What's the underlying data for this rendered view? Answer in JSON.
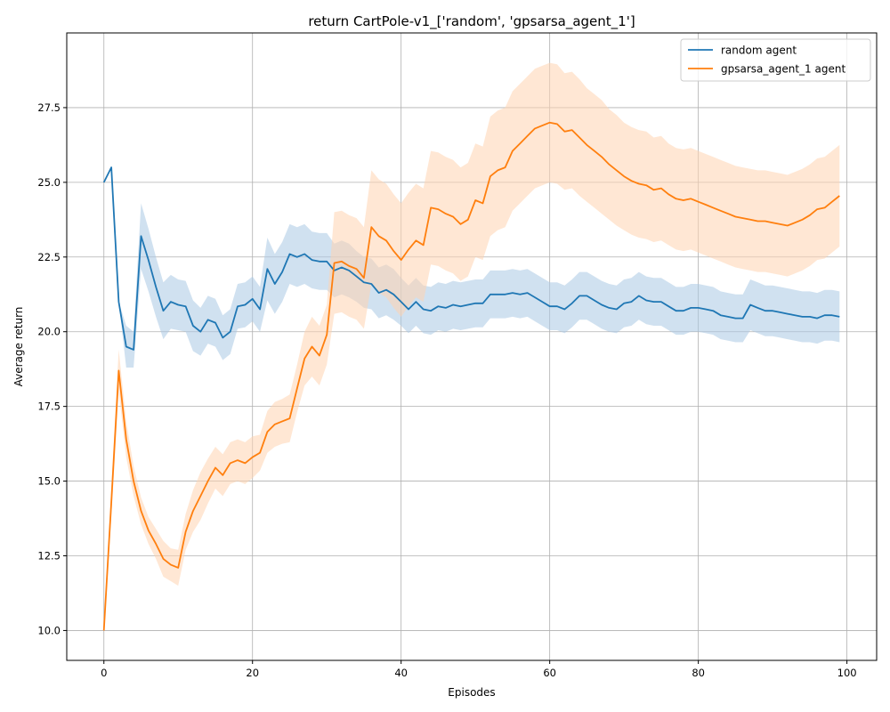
{
  "chart_data": {
    "type": "line",
    "title": "return CartPole-v1_['random', 'gpsarsa_agent_1']",
    "xlabel": "Episodes",
    "ylabel": "Average return",
    "xlim": [
      -5,
      104
    ],
    "ylim": [
      9.0,
      30.0
    ],
    "xticks": [
      0,
      20,
      40,
      60,
      80,
      100
    ],
    "xtick_labels": [
      "0",
      "20",
      "40",
      "60",
      "80",
      "100"
    ],
    "yticks": [
      10.0,
      12.5,
      15.0,
      17.5,
      20.0,
      22.5,
      25.0,
      27.5
    ],
    "ytick_labels": [
      "10.0",
      "12.5",
      "15.0",
      "17.5",
      "20.0",
      "22.5",
      "25.0",
      "27.5"
    ],
    "grid": true,
    "legend_position": "top-right",
    "series": [
      {
        "name": "random agent",
        "color": "#1f77b4",
        "band_color": "#aac8e4",
        "x_start": 0,
        "values": [
          25.0,
          25.5,
          21.0,
          19.5,
          19.4,
          23.2,
          22.4,
          21.5,
          20.7,
          21.0,
          20.9,
          20.85,
          20.2,
          20.0,
          20.4,
          20.3,
          19.8,
          20.0,
          20.85,
          20.9,
          21.1,
          20.75,
          22.1,
          21.6,
          22.0,
          22.6,
          22.5,
          22.6,
          22.4,
          22.35,
          22.35,
          22.05,
          22.15,
          22.05,
          21.85,
          21.65,
          21.6,
          21.3,
          21.4,
          21.25,
          21.0,
          20.75,
          21.0,
          20.75,
          20.7,
          20.85,
          20.8,
          20.9,
          20.85,
          20.9,
          20.95,
          20.95,
          21.25,
          21.25,
          21.25,
          21.3,
          21.25,
          21.3,
          21.15,
          21.0,
          20.85,
          20.85,
          20.75,
          20.95,
          21.2,
          21.2,
          21.05,
          20.9,
          20.8,
          20.75,
          20.95,
          21.0,
          21.2,
          21.05,
          21.0,
          21.0,
          20.85,
          20.7,
          20.7,
          20.8,
          20.8,
          20.75,
          20.7,
          20.55,
          20.5,
          20.45,
          20.45,
          20.9,
          20.8,
          20.7,
          20.7,
          20.65,
          20.6,
          20.55,
          20.5,
          20.5,
          20.45,
          20.55,
          20.55,
          20.5
        ],
        "band_halfwidth": [
          0,
          0,
          0,
          0.7,
          0.6,
          1.1,
          1.05,
          1.0,
          0.95,
          0.9,
          0.85,
          0.85,
          0.85,
          0.8,
          0.8,
          0.8,
          0.75,
          0.75,
          0.75,
          0.75,
          0.75,
          0.75,
          1.05,
          1.0,
          1.0,
          1.0,
          1.0,
          1.0,
          0.95,
          0.95,
          0.95,
          0.9,
          0.9,
          0.9,
          0.85,
          0.85,
          0.85,
          0.85,
          0.85,
          0.85,
          0.8,
          0.8,
          0.8,
          0.8,
          0.8,
          0.8,
          0.8,
          0.8,
          0.8,
          0.8,
          0.8,
          0.8,
          0.8,
          0.8,
          0.8,
          0.8,
          0.8,
          0.8,
          0.8,
          0.8,
          0.8,
          0.8,
          0.8,
          0.8,
          0.8,
          0.8,
          0.8,
          0.8,
          0.8,
          0.8,
          0.8,
          0.8,
          0.8,
          0.8,
          0.8,
          0.8,
          0.8,
          0.8,
          0.8,
          0.8,
          0.8,
          0.8,
          0.8,
          0.8,
          0.8,
          0.8,
          0.8,
          0.85,
          0.85,
          0.85,
          0.85,
          0.85,
          0.85,
          0.85,
          0.85,
          0.85,
          0.85,
          0.85,
          0.85,
          0.85
        ]
      },
      {
        "name": "gpsarsa_agent_1 agent",
        "color": "#ff7f0e",
        "band_color": "#ffd4b0",
        "x_start": 0,
        "values": [
          10.0,
          14.3,
          18.7,
          16.4,
          15.0,
          14.0,
          13.35,
          12.9,
          12.4,
          12.2,
          12.1,
          13.3,
          14.0,
          14.5,
          15.0,
          15.45,
          15.2,
          15.6,
          15.7,
          15.6,
          15.8,
          15.95,
          16.65,
          16.9,
          17.0,
          17.1,
          18.1,
          19.1,
          19.5,
          19.2,
          19.9,
          22.3,
          22.35,
          22.2,
          22.1,
          21.8,
          23.5,
          23.2,
          23.05,
          22.7,
          22.4,
          22.75,
          23.05,
          22.9,
          24.15,
          24.1,
          23.95,
          23.85,
          23.6,
          23.75,
          24.4,
          24.3,
          25.2,
          25.4,
          25.5,
          26.05,
          26.3,
          26.55,
          26.8,
          26.9,
          27.0,
          26.95,
          26.7,
          26.75,
          26.5,
          26.25,
          26.05,
          25.85,
          25.6,
          25.4,
          25.2,
          25.05,
          24.95,
          24.9,
          24.75,
          24.8,
          24.6,
          24.45,
          24.4,
          24.45,
          24.35,
          24.25,
          24.15,
          24.05,
          23.95,
          23.85,
          23.8,
          23.75,
          23.7,
          23.7,
          23.65,
          23.6,
          23.55,
          23.65,
          23.75,
          23.9,
          24.1,
          24.15,
          24.35,
          24.55
        ],
        "band_halfwidth": [
          0,
          0.5,
          0.7,
          0.6,
          0.5,
          0.45,
          0.45,
          0.5,
          0.6,
          0.55,
          0.6,
          0.6,
          0.7,
          0.8,
          0.75,
          0.7,
          0.7,
          0.7,
          0.7,
          0.7,
          0.7,
          0.6,
          0.7,
          0.75,
          0.75,
          0.8,
          0.8,
          0.9,
          1.0,
          1.0,
          1.0,
          1.7,
          1.7,
          1.7,
          1.7,
          1.7,
          1.9,
          1.9,
          1.9,
          1.9,
          1.9,
          1.9,
          1.9,
          1.9,
          1.9,
          1.9,
          1.9,
          1.9,
          1.9,
          1.9,
          1.9,
          1.9,
          2.0,
          2.0,
          2.0,
          2.0,
          2.0,
          2.0,
          2.0,
          2.0,
          2.0,
          2.0,
          1.95,
          1.95,
          1.95,
          1.9,
          1.9,
          1.9,
          1.85,
          1.85,
          1.8,
          1.8,
          1.8,
          1.8,
          1.75,
          1.75,
          1.7,
          1.7,
          1.7,
          1.7,
          1.7,
          1.7,
          1.7,
          1.7,
          1.7,
          1.7,
          1.7,
          1.7,
          1.7,
          1.7,
          1.7,
          1.7,
          1.7,
          1.7,
          1.7,
          1.7,
          1.7,
          1.7,
          1.7,
          1.7
        ]
      }
    ]
  }
}
